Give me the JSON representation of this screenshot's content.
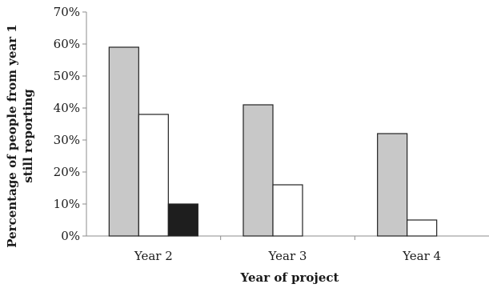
{
  "chart_data": {
    "type": "bar",
    "title": "",
    "xlabel": "Year of project",
    "ylabel_lines": [
      "Percentage of people from year 1",
      "still reporting"
    ],
    "categories": [
      "Year 2",
      "Year 3",
      "Year 4"
    ],
    "yticks": [
      "0%",
      "10%",
      "20%",
      "30%",
      "40%",
      "50%",
      "60%",
      "70%"
    ],
    "ylim": [
      0,
      70
    ],
    "grid": false,
    "legend": "none",
    "series": [
      {
        "values": [
          59,
          41,
          32
        ],
        "color": "#c8c8c8"
      },
      {
        "values": [
          38,
          16,
          5
        ],
        "color": "#ffffff"
      },
      {
        "values": [
          10,
          null,
          null
        ],
        "color": "#1e1e1e"
      }
    ]
  }
}
